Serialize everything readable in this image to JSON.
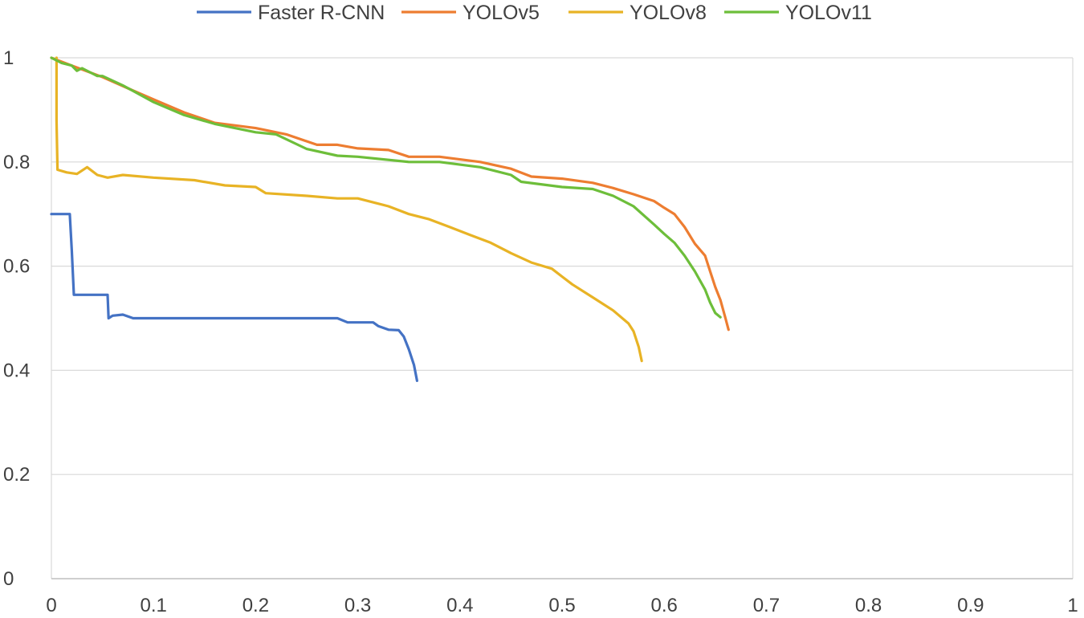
{
  "chart_data": {
    "type": "line",
    "title": "",
    "xlabel": "",
    "ylabel": "",
    "xlim": [
      0,
      1
    ],
    "ylim": [
      0,
      1
    ],
    "x_ticks": [
      {
        "value": 0,
        "label": "0"
      },
      {
        "value": 0.1,
        "label": "0.1"
      },
      {
        "value": 0.2,
        "label": "0.2"
      },
      {
        "value": 0.3,
        "label": "0.3"
      },
      {
        "value": 0.4,
        "label": "0.4"
      },
      {
        "value": 0.5,
        "label": "0.5"
      },
      {
        "value": 0.6,
        "label": "0.6"
      },
      {
        "value": 0.7,
        "label": "0.7"
      },
      {
        "value": 0.8,
        "label": "0.8"
      },
      {
        "value": 0.9,
        "label": "0.9"
      },
      {
        "value": 1,
        "label": "1"
      }
    ],
    "y_ticks": [
      {
        "value": 0,
        "label": "0"
      },
      {
        "value": 0.2,
        "label": "0.2"
      },
      {
        "value": 0.4,
        "label": "0.4"
      },
      {
        "value": 0.6,
        "label": "0.6"
      },
      {
        "value": 0.8,
        "label": "0.8"
      },
      {
        "value": 1,
        "label": "1"
      }
    ],
    "grid": "horizontal",
    "legend": "top",
    "series": [
      {
        "name": "Faster R-CNN",
        "color": "#4472C4",
        "points": [
          [
            0,
            0.7
          ],
          [
            0.018,
            0.7
          ],
          [
            0.02,
            0.63
          ],
          [
            0.022,
            0.545
          ],
          [
            0.055,
            0.545
          ],
          [
            0.056,
            0.5
          ],
          [
            0.06,
            0.505
          ],
          [
            0.07,
            0.507
          ],
          [
            0.08,
            0.5
          ],
          [
            0.15,
            0.5
          ],
          [
            0.25,
            0.5
          ],
          [
            0.28,
            0.5
          ],
          [
            0.29,
            0.492
          ],
          [
            0.315,
            0.492
          ],
          [
            0.32,
            0.485
          ],
          [
            0.33,
            0.478
          ],
          [
            0.34,
            0.477
          ],
          [
            0.345,
            0.465
          ],
          [
            0.35,
            0.44
          ],
          [
            0.355,
            0.41
          ],
          [
            0.358,
            0.38
          ]
        ]
      },
      {
        "name": "YOLOv5",
        "color": "#ED7D31",
        "points": [
          [
            0,
            1.0
          ],
          [
            0.02,
            0.985
          ],
          [
            0.05,
            0.963
          ],
          [
            0.08,
            0.937
          ],
          [
            0.1,
            0.92
          ],
          [
            0.13,
            0.895
          ],
          [
            0.16,
            0.875
          ],
          [
            0.2,
            0.865
          ],
          [
            0.23,
            0.853
          ],
          [
            0.26,
            0.833
          ],
          [
            0.28,
            0.833
          ],
          [
            0.3,
            0.826
          ],
          [
            0.33,
            0.823
          ],
          [
            0.35,
            0.81
          ],
          [
            0.38,
            0.81
          ],
          [
            0.42,
            0.8
          ],
          [
            0.45,
            0.787
          ],
          [
            0.47,
            0.772
          ],
          [
            0.5,
            0.768
          ],
          [
            0.53,
            0.76
          ],
          [
            0.55,
            0.75
          ],
          [
            0.57,
            0.738
          ],
          [
            0.59,
            0.725
          ],
          [
            0.6,
            0.712
          ],
          [
            0.61,
            0.7
          ],
          [
            0.62,
            0.675
          ],
          [
            0.63,
            0.643
          ],
          [
            0.64,
            0.62
          ],
          [
            0.645,
            0.59
          ],
          [
            0.65,
            0.56
          ],
          [
            0.655,
            0.535
          ],
          [
            0.66,
            0.5
          ],
          [
            0.663,
            0.478
          ]
        ]
      },
      {
        "name": "YOLOv8",
        "color": "#E8B325",
        "points": [
          [
            0.005,
            1.0
          ],
          [
            0.005,
            0.88
          ],
          [
            0.006,
            0.785
          ],
          [
            0.015,
            0.78
          ],
          [
            0.025,
            0.777
          ],
          [
            0.035,
            0.79
          ],
          [
            0.045,
            0.775
          ],
          [
            0.055,
            0.77
          ],
          [
            0.07,
            0.775
          ],
          [
            0.1,
            0.77
          ],
          [
            0.14,
            0.765
          ],
          [
            0.17,
            0.755
          ],
          [
            0.2,
            0.752
          ],
          [
            0.21,
            0.74
          ],
          [
            0.25,
            0.735
          ],
          [
            0.28,
            0.73
          ],
          [
            0.3,
            0.73
          ],
          [
            0.33,
            0.715
          ],
          [
            0.35,
            0.7
          ],
          [
            0.37,
            0.69
          ],
          [
            0.39,
            0.675
          ],
          [
            0.41,
            0.66
          ],
          [
            0.43,
            0.645
          ],
          [
            0.45,
            0.625
          ],
          [
            0.47,
            0.607
          ],
          [
            0.49,
            0.595
          ],
          [
            0.5,
            0.58
          ],
          [
            0.51,
            0.565
          ],
          [
            0.53,
            0.54
          ],
          [
            0.55,
            0.515
          ],
          [
            0.565,
            0.49
          ],
          [
            0.57,
            0.475
          ],
          [
            0.575,
            0.445
          ],
          [
            0.578,
            0.418
          ]
        ]
      },
      {
        "name": "YOLOv11",
        "color": "#6DBE3A",
        "points": [
          [
            0,
            1.0
          ],
          [
            0.01,
            0.99
          ],
          [
            0.02,
            0.985
          ],
          [
            0.025,
            0.975
          ],
          [
            0.03,
            0.98
          ],
          [
            0.04,
            0.97
          ],
          [
            0.045,
            0.965
          ],
          [
            0.05,
            0.965
          ],
          [
            0.07,
            0.947
          ],
          [
            0.1,
            0.915
          ],
          [
            0.13,
            0.89
          ],
          [
            0.16,
            0.873
          ],
          [
            0.2,
            0.857
          ],
          [
            0.22,
            0.853
          ],
          [
            0.25,
            0.825
          ],
          [
            0.28,
            0.812
          ],
          [
            0.3,
            0.81
          ],
          [
            0.35,
            0.8
          ],
          [
            0.38,
            0.8
          ],
          [
            0.42,
            0.79
          ],
          [
            0.45,
            0.775
          ],
          [
            0.46,
            0.762
          ],
          [
            0.5,
            0.752
          ],
          [
            0.53,
            0.748
          ],
          [
            0.55,
            0.735
          ],
          [
            0.57,
            0.715
          ],
          [
            0.59,
            0.68
          ],
          [
            0.6,
            0.662
          ],
          [
            0.61,
            0.645
          ],
          [
            0.62,
            0.62
          ],
          [
            0.63,
            0.59
          ],
          [
            0.64,
            0.555
          ],
          [
            0.645,
            0.53
          ],
          [
            0.65,
            0.51
          ],
          [
            0.655,
            0.502
          ]
        ]
      }
    ]
  }
}
